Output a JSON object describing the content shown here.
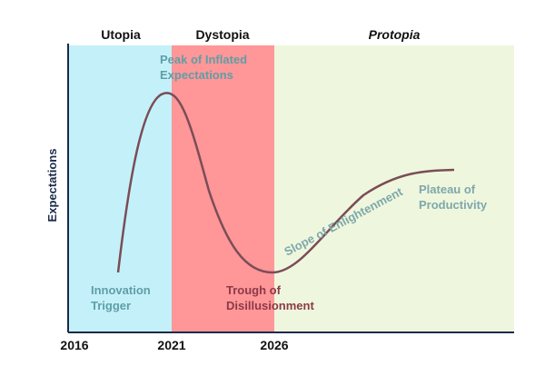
{
  "chart_data": {
    "type": "line",
    "title": "",
    "xlabel": "",
    "ylabel": "Expectations",
    "x_ticks": [
      "2016",
      "2021",
      "2026"
    ],
    "grid": false,
    "eras": [
      {
        "name": "Utopia",
        "from": "2016",
        "to": "2021",
        "italic": false,
        "color": "#c4f1f9"
      },
      {
        "name": "Dystopia",
        "from": "2021",
        "to": "2026",
        "italic": false,
        "color": "#ff9698"
      },
      {
        "name": "Protopia",
        "from": "2026",
        "to": "",
        "italic": true,
        "color": "#eef7dd"
      }
    ],
    "phases": [
      {
        "name": "Innovation Trigger",
        "lines": [
          "Innovation",
          "Trigger"
        ],
        "color": "#5f9ea6"
      },
      {
        "name": "Peak of Inflated Expectations",
        "lines": [
          "Peak of Inflated",
          "Expectations"
        ],
        "color": "#5f9ea6"
      },
      {
        "name": "Trough of Disillusionment",
        "lines": [
          "Trough of",
          "Disillusionment"
        ],
        "color": "#8c3a48"
      },
      {
        "name": "Slope of Enlightenment",
        "lines": [
          "Slope of Enlightenment"
        ],
        "color": "#7fa7ab"
      },
      {
        "name": "Plateau of Productivity",
        "lines": [
          "Plateau of",
          "Productivity"
        ],
        "color": "#7fa7ab"
      }
    ],
    "curve_color": "#7a4d57",
    "axis_color": "#1b2a4a"
  }
}
